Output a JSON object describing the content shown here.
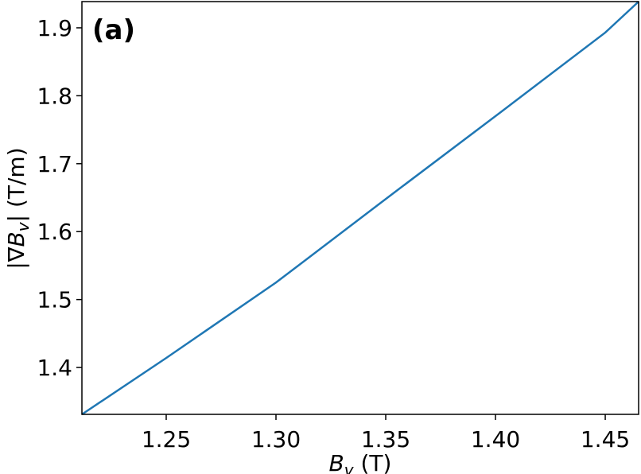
{
  "chart_data": {
    "type": "line",
    "annotation": "(a)",
    "xlabel": {
      "symbol": "B",
      "subscript": "v",
      "unit": "(T)"
    },
    "ylabel": {
      "prefix": "|∇",
      "symbol": "B",
      "subscript": "v",
      "suffix": "|",
      "unit": "(T/m)"
    },
    "x": [
      1.2116,
      1.25,
      1.3,
      1.35,
      1.4,
      1.45,
      1.4652
    ],
    "series": [
      {
        "color": "#1f77b4",
        "values": [
          1.331,
          1.414,
          1.525,
          1.648,
          1.77,
          1.893,
          1.9386
        ]
      }
    ],
    "xlim": [
      1.2116,
      1.4652
    ],
    "ylim": [
      1.331,
      1.9386
    ],
    "xticks": [
      1.25,
      {
        "value": 1.3,
        "label": "1.30"
      },
      1.35,
      {
        "value": 1.4,
        "label": "1.40"
      },
      1.45
    ],
    "yticks": [
      1.4,
      1.5,
      1.6,
      1.7,
      1.8,
      1.9
    ],
    "grid": false
  }
}
